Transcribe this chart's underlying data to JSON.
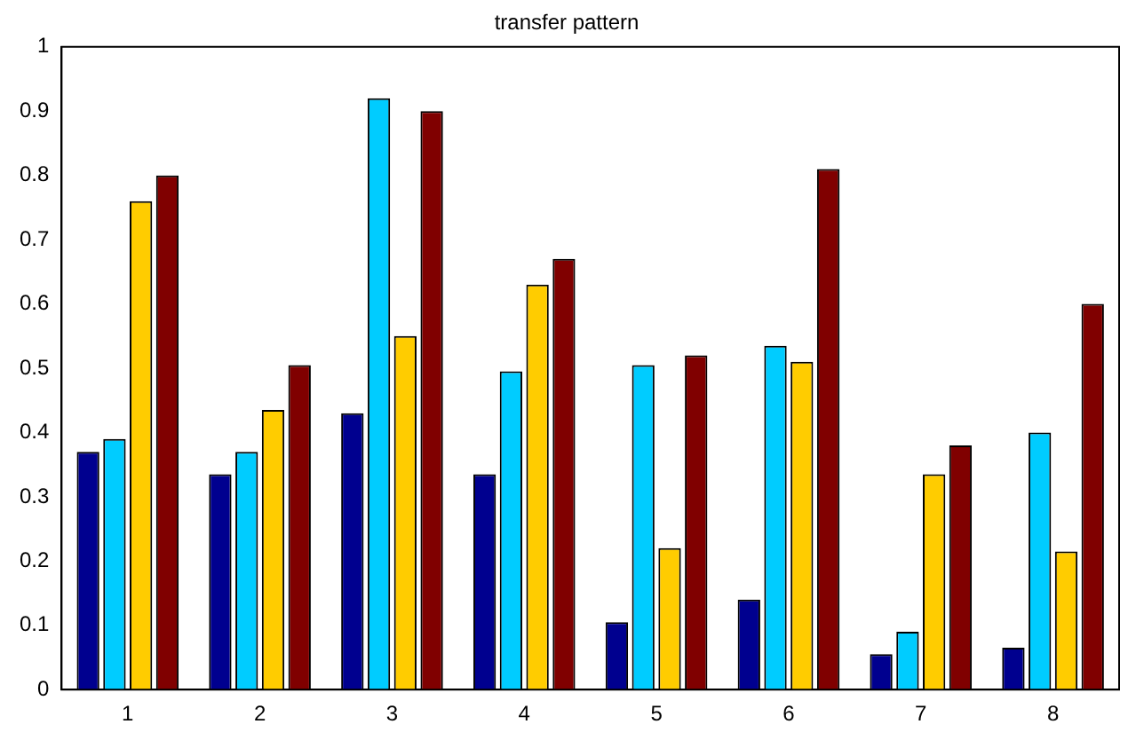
{
  "chart_data": {
    "type": "bar",
    "title": "transfer pattern",
    "categories": [
      "1",
      "2",
      "3",
      "4",
      "5",
      "6",
      "7",
      "8"
    ],
    "series": [
      {
        "color": "#00008f",
        "values": [
          0.37,
          0.335,
          0.43,
          0.335,
          0.105,
          0.14,
          0.055,
          0.065
        ]
      },
      {
        "color": "#00ccff",
        "values": [
          0.39,
          0.37,
          0.92,
          0.495,
          0.505,
          0.535,
          0.09,
          0.4
        ]
      },
      {
        "color": "#ffcc00",
        "values": [
          0.76,
          0.435,
          0.55,
          0.63,
          0.22,
          0.51,
          0.335,
          0.215
        ]
      },
      {
        "color": "#800000",
        "values": [
          0.8,
          0.505,
          0.9,
          0.67,
          0.52,
          0.81,
          0.38,
          0.6
        ]
      }
    ],
    "ylim": [
      0,
      1
    ],
    "yticks": [
      0,
      0.1,
      0.2,
      0.3,
      0.4,
      0.5,
      0.6,
      0.7,
      0.8,
      0.9,
      1
    ],
    "grid": false,
    "legend": false
  }
}
